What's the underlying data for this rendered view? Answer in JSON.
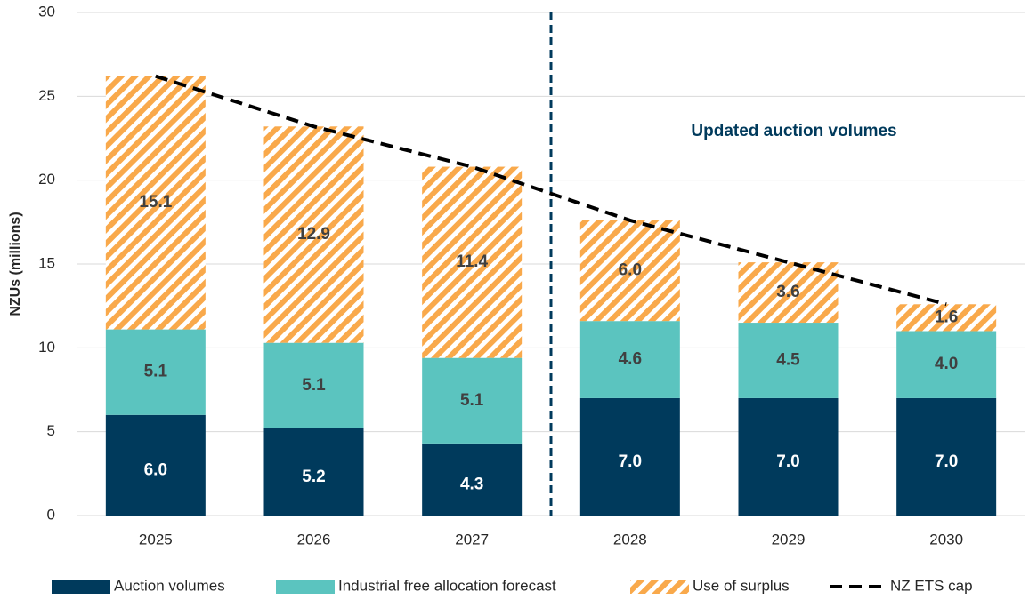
{
  "chart_data": {
    "type": "bar",
    "stacked": true,
    "y_label": "NZUs (millions)",
    "annotation": "Updated auction volumes",
    "categories": [
      "2025",
      "2026",
      "2027",
      "2028",
      "2029",
      "2030"
    ],
    "series": [
      {
        "name": "Auction volumes",
        "color": "#003a5c",
        "values": [
          6.0,
          5.2,
          4.3,
          7.0,
          7.0,
          7.0
        ],
        "value_labels": [
          "6.0",
          "5.2",
          "4.3",
          "7.0",
          "7.0",
          "7.0"
        ]
      },
      {
        "name": "Industrial free allocation forecast",
        "color": "#5bc4bf",
        "values": [
          5.1,
          5.1,
          5.1,
          4.6,
          4.5,
          4.0
        ],
        "value_labels": [
          "5.1",
          "5.1",
          "5.1",
          "4.6",
          "4.5",
          "4.0"
        ]
      },
      {
        "name": "Use of surplus",
        "color": "#f9a94b",
        "hatched": true,
        "values": [
          15.1,
          12.9,
          11.4,
          6.0,
          3.6,
          1.6
        ],
        "value_labels": [
          "15.1",
          "12.9",
          "11.4",
          "6.0",
          "3.6",
          "1.6"
        ]
      }
    ],
    "line": {
      "name": "NZ ETS cap",
      "color": "#000000",
      "dashed": true,
      "values": [
        26.2,
        23.2,
        20.8,
        17.6,
        15.1,
        12.6
      ]
    },
    "ylim": [
      0,
      30
    ],
    "yticks": [
      0,
      5,
      10,
      15,
      20,
      25,
      30
    ],
    "grid": true
  }
}
